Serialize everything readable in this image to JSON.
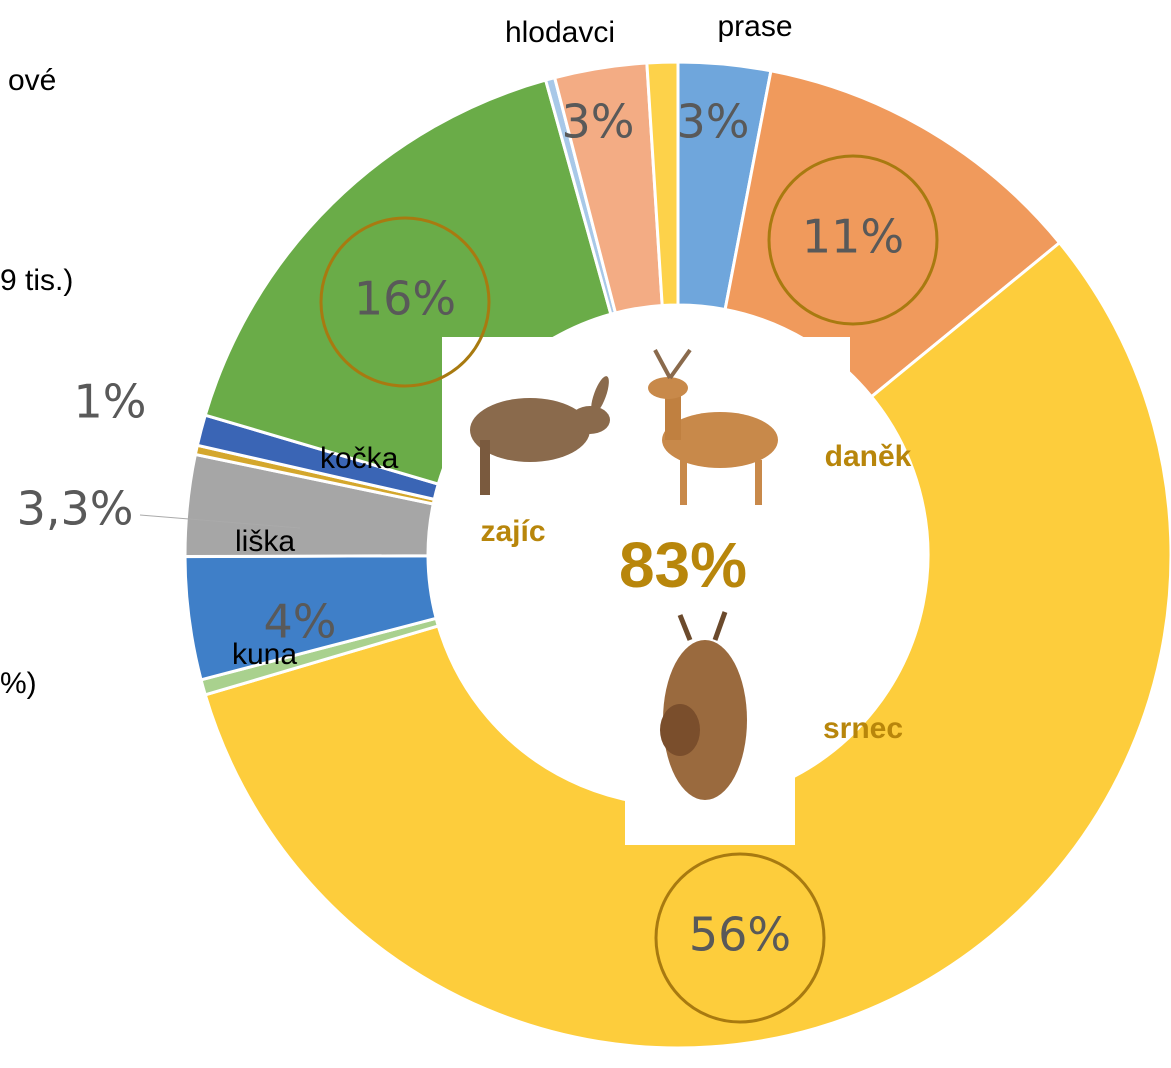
{
  "chart_data": {
    "type": "pie",
    "donut": true,
    "categories": [
      "prase",
      null,
      null,
      null,
      "kuna",
      "liška",
      null,
      "kočka",
      null,
      null,
      "hlodavci",
      null
    ],
    "values": [
      3,
      11,
      56,
      0.5,
      4,
      3.3,
      0.3,
      1,
      16,
      0.3,
      3,
      1
    ],
    "value_labels": [
      "3%",
      "11%",
      "56%",
      null,
      "4%",
      "3,3%",
      null,
      "1%",
      "16%",
      null,
      "3%",
      null
    ],
    "colors": [
      "#6fa6dc",
      "#f09a5c",
      "#fdcd3c",
      "#a9d18e",
      "#3f7fc8",
      "#a6a6a6",
      "#d4a72c",
      "#3a65b5",
      "#6aac48",
      "#a8c8e8",
      "#f3ac84",
      "#fdd24a"
    ],
    "center_label": "83%",
    "animal_labels": [
      "zajíc",
      "daněk",
      "srnec"
    ],
    "side_notes": [
      "ové",
      "9 tis.)",
      "%)"
    ]
  }
}
